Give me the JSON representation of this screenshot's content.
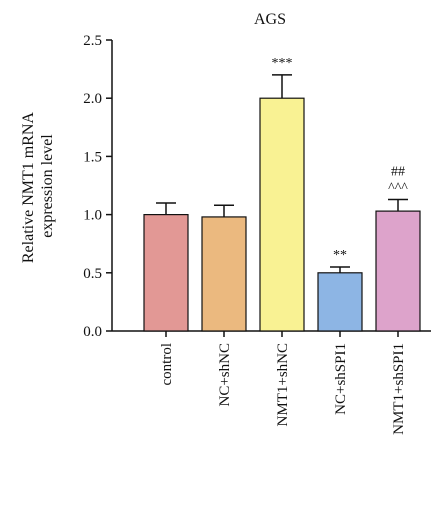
{
  "chart_data": {
    "type": "bar",
    "title": "AGS",
    "ylabel_lines": [
      "Relative NMT1 mRNA",
      "expression level"
    ],
    "xlabel": "",
    "ylim": [
      0,
      2.5
    ],
    "yticks": [
      "0.0",
      "0.5",
      "1.0",
      "1.5",
      "2.0",
      "2.5"
    ],
    "grid": false,
    "categories": [
      "control",
      "NC+shNC",
      "NMT1+shNC",
      "NC+shSPI1",
      "NMT1+shSPI1"
    ],
    "values": [
      1.0,
      0.98,
      2.0,
      0.5,
      1.03
    ],
    "errors": [
      0.1,
      0.1,
      0.2,
      0.05,
      0.1
    ],
    "colors": [
      "#E29895",
      "#EBB97F",
      "#F9F293",
      "#8DB5E4",
      "#DDA3CB"
    ],
    "significance": [
      [],
      [],
      [
        "***"
      ],
      [
        "**"
      ],
      [
        "^^^",
        "##"
      ]
    ]
  }
}
